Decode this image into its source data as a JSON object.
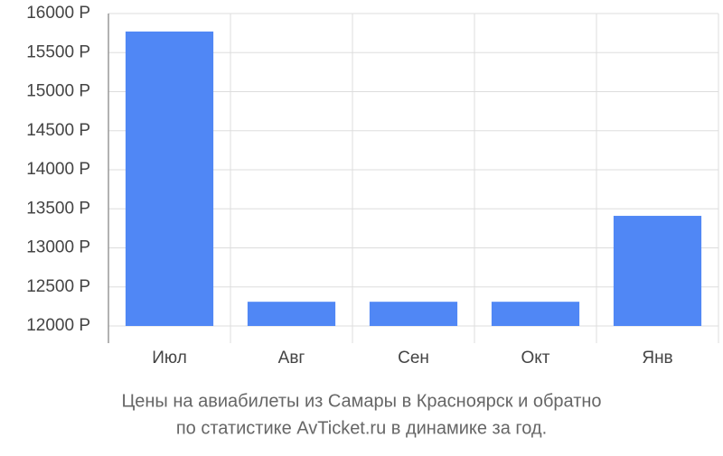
{
  "chart_data": {
    "type": "bar",
    "title": [
      "Цены на авиабилеты из Самары в Красноярск и обратно",
      "по статистике AvTicket.ru в динамике за год."
    ],
    "categories": [
      "Июл",
      "Авг",
      "Сен",
      "Окт",
      "Янв"
    ],
    "values": [
      15770,
      12310,
      12310,
      12310,
      13410
    ],
    "color": "#5087f5",
    "ylim": [
      12000,
      16000
    ],
    "yticks": [
      {
        "value": 12000,
        "label": "12000 Р"
      },
      {
        "value": 12500,
        "label": "12500 Р"
      },
      {
        "value": 13000,
        "label": "13000 Р"
      },
      {
        "value": 13500,
        "label": "13500 Р"
      },
      {
        "value": 14000,
        "label": "14000 Р"
      },
      {
        "value": 14500,
        "label": "14500 Р"
      },
      {
        "value": 15000,
        "label": "15000 Р"
      },
      {
        "value": 15500,
        "label": "15500 Р"
      },
      {
        "value": 16000,
        "label": "16000 Р"
      }
    ],
    "grid": true
  }
}
